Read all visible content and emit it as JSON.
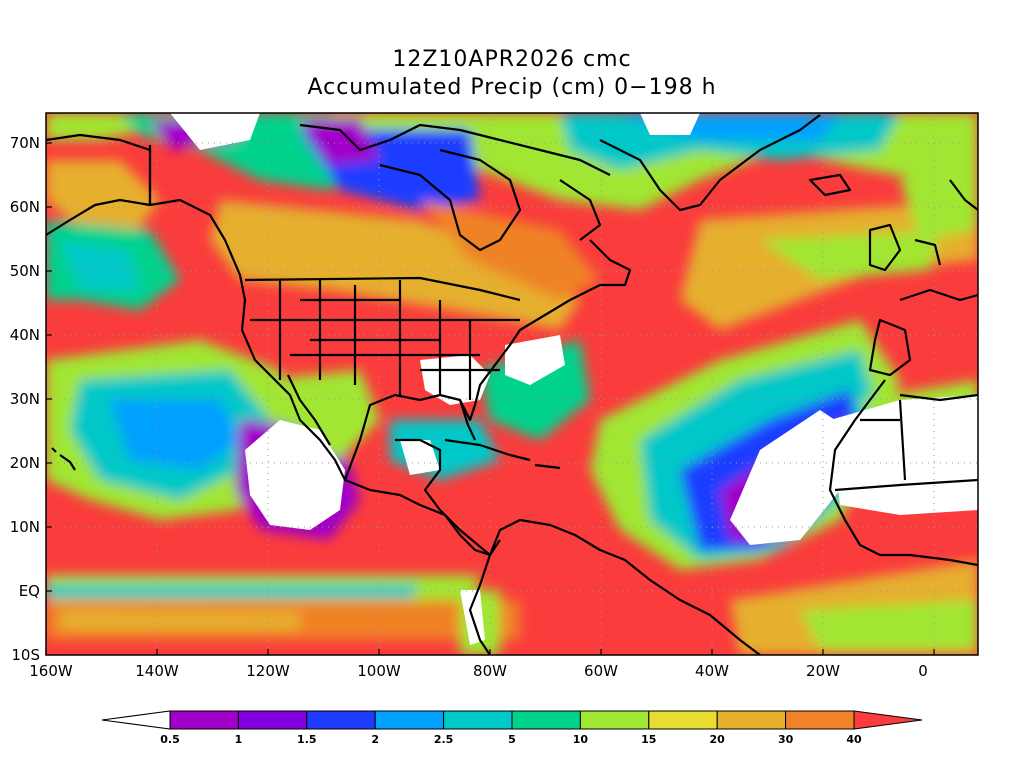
{
  "header": {
    "line1": "12Z10APR2026 cmc",
    "line2": "Accumulated Precip (cm) 0−198 h"
  },
  "axes": {
    "lat_labels": [
      "70N",
      "60N",
      "50N",
      "40N",
      "30N",
      "20N",
      "10N",
      "EQ",
      "10S"
    ],
    "lon_labels": [
      "160W",
      "140W",
      "120W",
      "100W",
      "80W",
      "60W",
      "40W",
      "20W",
      "0"
    ]
  },
  "colorbar": {
    "levels": [
      "0.5",
      "1",
      "1.5",
      "2",
      "2.5",
      "5",
      "10",
      "15",
      "20",
      "30",
      "40"
    ],
    "colors": [
      "#ffffff",
      "#a000c8",
      "#8200dc",
      "#1e3cff",
      "#00a0ff",
      "#00c8c8",
      "#00d28c",
      "#a0e632",
      "#e6dc32",
      "#e6af2d",
      "#f08228",
      "#fa3c3c"
    ]
  }
}
